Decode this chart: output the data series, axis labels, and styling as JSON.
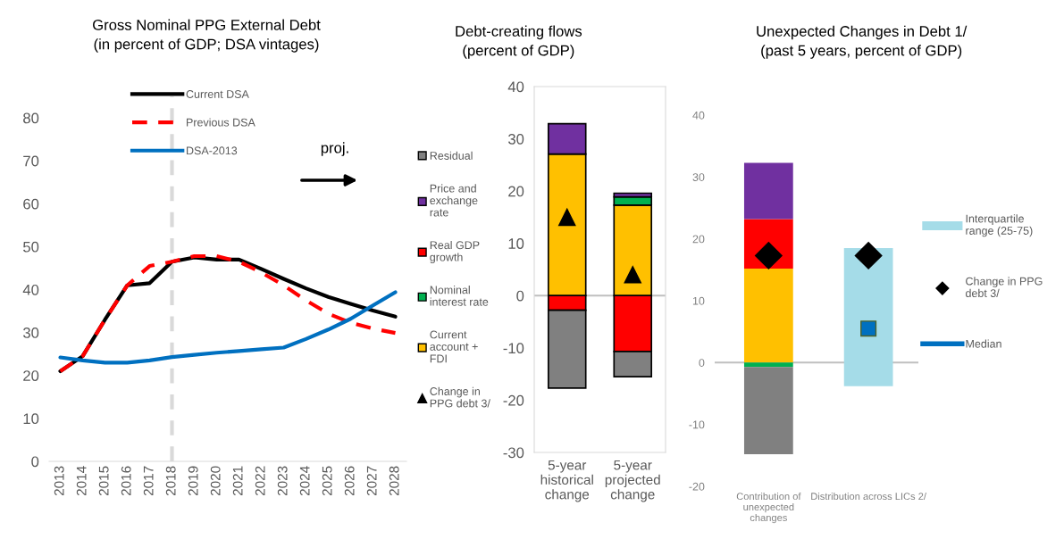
{
  "chart_data": [
    {
      "type": "line",
      "title": "Gross Nominal PPG External Debt\n(in percent of GDP; DSA vintages)",
      "x": [
        2013,
        2014,
        2015,
        2016,
        2017,
        2018,
        2019,
        2020,
        2021,
        2022,
        2023,
        2024,
        2025,
        2026,
        2027,
        2028
      ],
      "series": [
        {
          "name": "Current DSA",
          "color": "#000000",
          "line_style": "solid",
          "values": [
            21,
            24.5,
            33,
            41,
            41.5,
            46.5,
            47.5,
            47,
            47,
            44.8,
            42.5,
            40.3,
            38.3,
            36.7,
            35.1,
            33.7
          ]
        },
        {
          "name": "Previous DSA",
          "color": "#ff0000",
          "line_style": "dashed",
          "values": [
            21,
            24.5,
            33,
            41,
            45.5,
            46.5,
            47.8,
            47.8,
            46.5,
            44,
            41,
            37.5,
            34.4,
            32.3,
            30.9,
            29.9
          ]
        },
        {
          "name": "DSA-2013",
          "color": "#0070c0",
          "line_style": "solid",
          "values": [
            24.2,
            23.5,
            23,
            23,
            23.5,
            24.3,
            24.8,
            25.3,
            25.7,
            26.1,
            26.5,
            28.5,
            30.7,
            33.2,
            36.3,
            39.4
          ]
        }
      ],
      "xlim": [
        2012.5,
        2028.5
      ],
      "xticks": [
        2013,
        2014,
        2015,
        2016,
        2017,
        2018,
        2019,
        2020,
        2021,
        2022,
        2023,
        2024,
        2025,
        2026,
        2027,
        2028
      ],
      "ylim": [
        0,
        85
      ],
      "yticks": [
        0,
        10,
        20,
        30,
        40,
        50,
        60,
        70,
        80
      ],
      "ref_lines": [
        {
          "axis": "x",
          "value": 2018,
          "color": "#d9d9d9",
          "line_style": "dashed"
        }
      ],
      "annotations": [
        "proj."
      ],
      "legend": "top",
      "marker": "none"
    },
    {
      "type": "bar",
      "title": "Debt-creating flows\n(percent of GDP)",
      "stacked": true,
      "categories": [
        "5-year\nhistorical\nchange",
        "5-year\nprojected\nchange"
      ],
      "series": [
        {
          "name": "Current\naccount +\nFDI",
          "color": "#ffc000",
          "values": [
            27.1,
            17.3
          ]
        },
        {
          "name": "Nominal\ninterest rate",
          "color": "#00b050",
          "values": [
            null,
            1.6
          ]
        },
        {
          "name": "Real GDP\ngrowth",
          "color": "#ff0000",
          "values": [
            -2.8,
            -10.7
          ]
        },
        {
          "name": "Price and\nexchange\nrate",
          "color": "#7030a0",
          "values": [
            5.8,
            0.7
          ]
        },
        {
          "name": "Residual",
          "color": "#808080",
          "values": [
            -14.9,
            -4.8
          ]
        },
        {
          "name": "Change in\nPPG debt 3/",
          "type": "scatter",
          "marker": "triangle",
          "color": "#000000",
          "values": [
            15,
            4
          ]
        }
      ],
      "ylim": [
        -30,
        40
      ],
      "yticks": [
        -30,
        -20,
        -10,
        0,
        10,
        20,
        30,
        40
      ],
      "ref_lines": [
        {
          "axis": "y",
          "value": 0,
          "color": "#bfbfbf"
        }
      ],
      "legend": "left"
    },
    {
      "type": "bar",
      "title": "Unexpected Changes in Debt 1/\n(past 5 years, percent of GDP)",
      "stacked": true,
      "categories": [
        "Contribution of\nunexpected\nchanges",
        "Distribution across LICs 2/"
      ],
      "series": [
        {
          "color": "#ffc000",
          "values": [
            15.2,
            null
          ]
        },
        {
          "color": "#00b050",
          "values": [
            -0.7,
            null
          ]
        },
        {
          "color": "#ff0000",
          "values": [
            8.0,
            null
          ]
        },
        {
          "color": "#7030a0",
          "values": [
            9.1,
            null
          ]
        },
        {
          "color": "#808080",
          "values": [
            -14.1,
            null
          ]
        },
        {
          "name": "Interquartile\nrange (25-75)",
          "color": "#a5dce8",
          "base": [
            null,
            -3.8
          ],
          "values": [
            null,
            22.3
          ]
        },
        {
          "name": "Change in PPG\ndebt 3/",
          "type": "scatter",
          "marker": "diamond",
          "color": "#000000",
          "values": [
            17.3,
            17.3
          ]
        },
        {
          "name": "Median",
          "type": "scatter",
          "marker": "square",
          "color": "#0070c0",
          "values": [
            null,
            5.5
          ]
        }
      ],
      "ylim": [
        -20,
        40
      ],
      "yticks": [
        -20,
        -10,
        0,
        10,
        20,
        30,
        40
      ],
      "ref_lines": [
        {
          "axis": "y",
          "value": 0,
          "color": "#bfbfbf"
        }
      ],
      "legend": "right"
    }
  ]
}
